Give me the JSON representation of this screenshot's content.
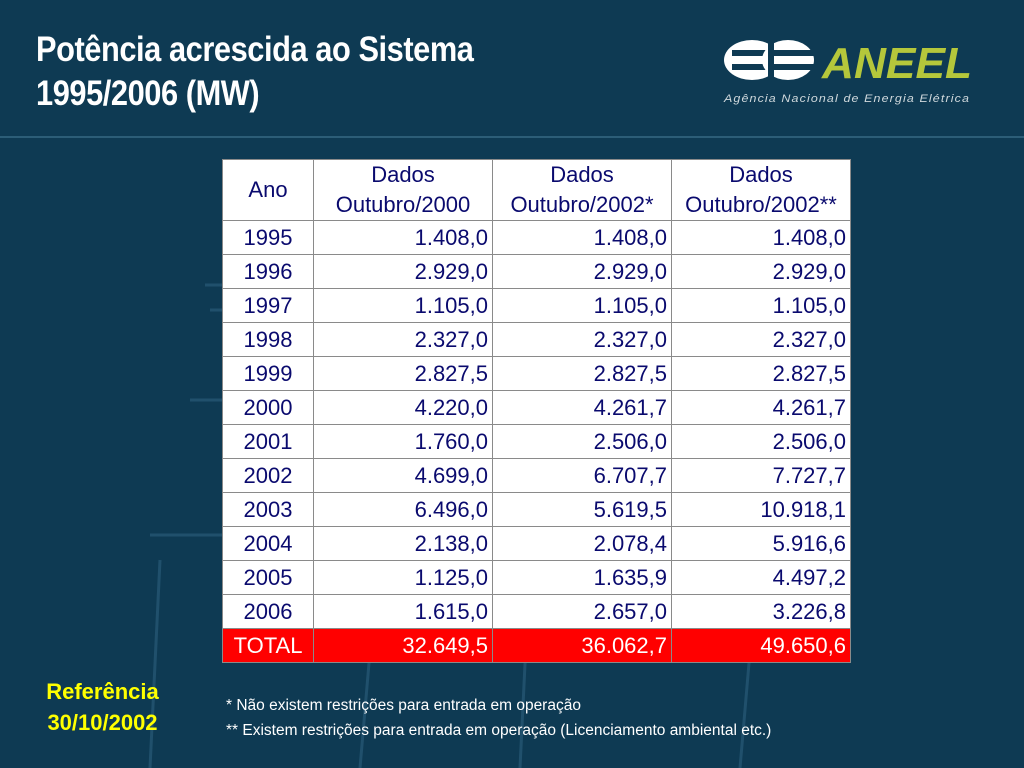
{
  "title": {
    "line1": "Potência acrescida ao Sistema",
    "line2": "1995/2006 (MW)"
  },
  "logo": {
    "brand": "ANEEL",
    "tagline": "Agência Nacional de Energia Elétrica",
    "icon": "eletric-e-icon"
  },
  "table": {
    "headers": {
      "year": "Ano",
      "col1": [
        "Dados",
        "Outubro/2000"
      ],
      "col2": [
        "Dados",
        "Outubro/2002*"
      ],
      "col3": [
        "Dados",
        "Outubro/2002**"
      ]
    },
    "rows": [
      [
        "1995",
        "1.408,0",
        "1.408,0",
        "1.408,0"
      ],
      [
        "1996",
        "2.929,0",
        "2.929,0",
        "2.929,0"
      ],
      [
        "1997",
        "1.105,0",
        "1.105,0",
        "1.105,0"
      ],
      [
        "1998",
        "2.327,0",
        "2.327,0",
        "2.327,0"
      ],
      [
        "1999",
        "2.827,5",
        "2.827,5",
        "2.827,5"
      ],
      [
        "2000",
        "4.220,0",
        "4.261,7",
        "4.261,7"
      ],
      [
        "2001",
        "1.760,0",
        "2.506,0",
        "2.506,0"
      ],
      [
        "2002",
        "4.699,0",
        "6.707,7",
        "7.727,7"
      ],
      [
        "2003",
        "6.496,0",
        "5.619,5",
        "10.918,1"
      ],
      [
        "2004",
        "2.138,0",
        "2.078,4",
        "5.916,6"
      ],
      [
        "2005",
        "1.125,0",
        "1.635,9",
        "4.497,2"
      ],
      [
        "2006",
        "1.615,0",
        "2.657,0",
        "3.226,8"
      ]
    ],
    "total": [
      "TOTAL",
      "32.649,5",
      "36.062,7",
      "49.650,6"
    ]
  },
  "reference": {
    "label": "Referência",
    "date": "30/10/2002"
  },
  "notes": [
    "* Não existem restrições para entrada em operação",
    "** Existem restrições para entrada em operação (Licenciamento ambiental etc.)"
  ],
  "colors": {
    "background": "#0e3a53",
    "accent_logo": "#b5c73b",
    "total_row": "#ff0000",
    "reference_text": "#ffff00",
    "table_text": "#0a0a6e"
  }
}
